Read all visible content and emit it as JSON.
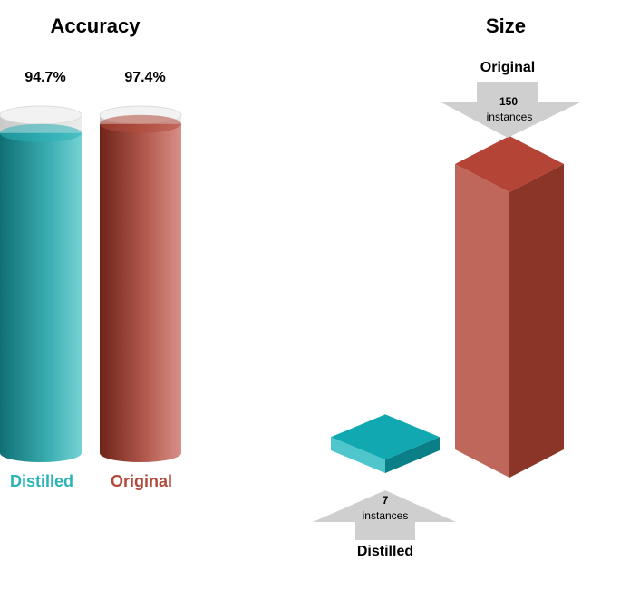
{
  "chart_data": [
    {
      "type": "bar",
      "title": "Accuracy",
      "categories": [
        "Distilled",
        "Original"
      ],
      "values": [
        94.7,
        97.4
      ],
      "value_labels": [
        "94.7%",
        "97.4%"
      ],
      "ylim": [
        0,
        100
      ],
      "colors": [
        "#2ab3b8",
        "#b24a3c"
      ]
    },
    {
      "type": "bar",
      "title": "Size",
      "categories": [
        "Distilled",
        "Original"
      ],
      "values": [
        7,
        150
      ],
      "value_labels": [
        "7",
        "150"
      ],
      "unit_label": "instances",
      "colors": [
        "#12a8b2",
        "#b44436"
      ]
    }
  ]
}
